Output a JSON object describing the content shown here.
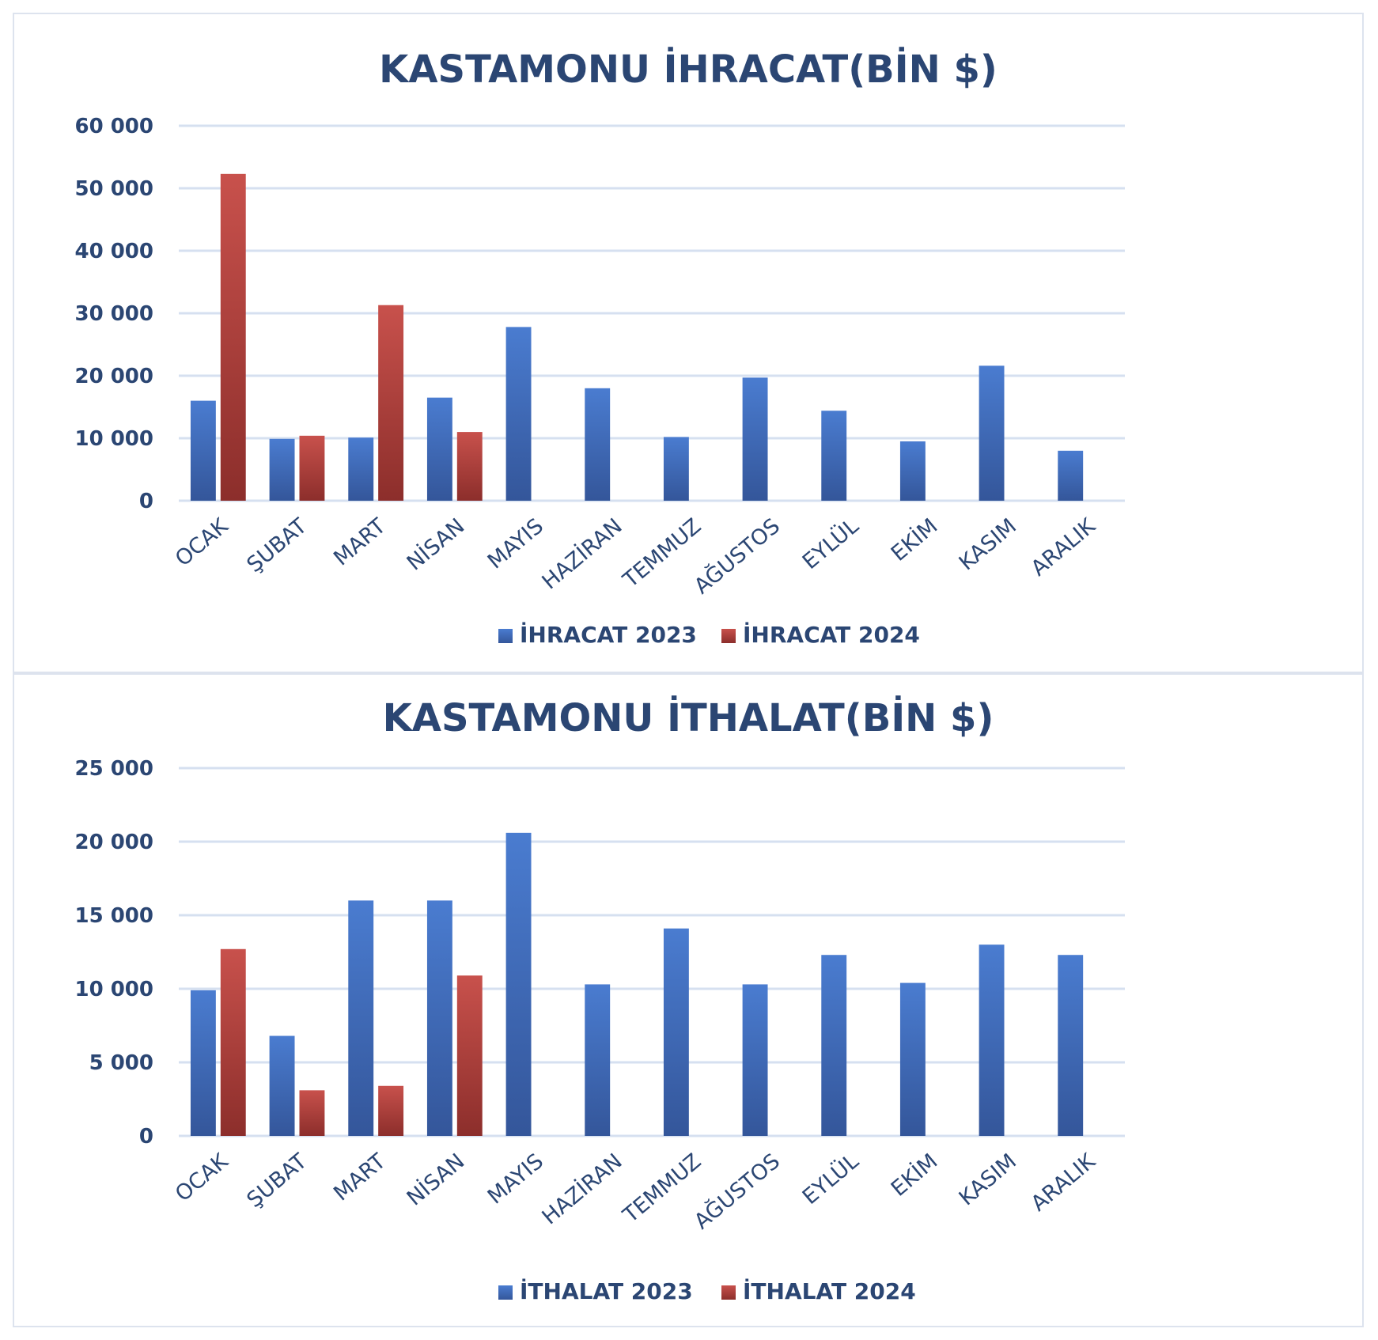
{
  "chart_data": [
    {
      "type": "bar",
      "title": "KASTAMONU İHRACAT(BİN $)",
      "categories": [
        "OCAK",
        "ŞUBAT",
        "MART",
        "NİSAN",
        "MAYIS",
        "HAZİRAN",
        "TEMMUZ",
        "AĞUSTOS",
        "EYLÜL",
        "EKİM",
        "KASIM",
        "ARALIK"
      ],
      "series": [
        {
          "name": "İHRACAT 2023",
          "color": "#4472c4",
          "values": [
            16000,
            9900,
            10100,
            16500,
            27800,
            18000,
            10200,
            19700,
            14400,
            9500,
            21600,
            8000
          ]
        },
        {
          "name": "İHRACAT 2024",
          "color": "#c0504d",
          "values": [
            52300,
            10400,
            31300,
            11000,
            null,
            null,
            null,
            null,
            null,
            null,
            null,
            null
          ]
        }
      ],
      "ylim": [
        0,
        60000
      ],
      "yticks": [
        0,
        10000,
        20000,
        30000,
        40000,
        50000,
        60000
      ],
      "ytick_labels": [
        "0",
        "10 000",
        "20 000",
        "30 000",
        "40 000",
        "50 000",
        "60 000"
      ],
      "grid": true,
      "legend": "bottom",
      "xlabel": "",
      "ylabel": ""
    },
    {
      "type": "bar",
      "title": "KASTAMONU İTHALAT(BİN $)",
      "categories": [
        "OCAK",
        "ŞUBAT",
        "MART",
        "NİSAN",
        "MAYIS",
        "HAZİRAN",
        "TEMMUZ",
        "AĞUSTOS",
        "EYLÜL",
        "EKİM",
        "KASIM",
        "ARALIK"
      ],
      "series": [
        {
          "name": "İTHALAT 2023",
          "color": "#4472c4",
          "values": [
            9900,
            6800,
            16000,
            16000,
            20600,
            10300,
            14100,
            10300,
            12300,
            10400,
            13000,
            12300
          ]
        },
        {
          "name": "İTHALAT 2024",
          "color": "#c0504d",
          "values": [
            12700,
            3100,
            3400,
            10900,
            null,
            null,
            null,
            null,
            null,
            null,
            null,
            null
          ]
        }
      ],
      "ylim": [
        0,
        25000
      ],
      "yticks": [
        0,
        5000,
        10000,
        15000,
        20000,
        25000
      ],
      "ytick_labels": [
        "0",
        "5 000",
        "10 000",
        "15 000",
        "20 000",
        "25 000"
      ],
      "grid": true,
      "legend": "bottom",
      "xlabel": "",
      "ylabel": ""
    }
  ]
}
